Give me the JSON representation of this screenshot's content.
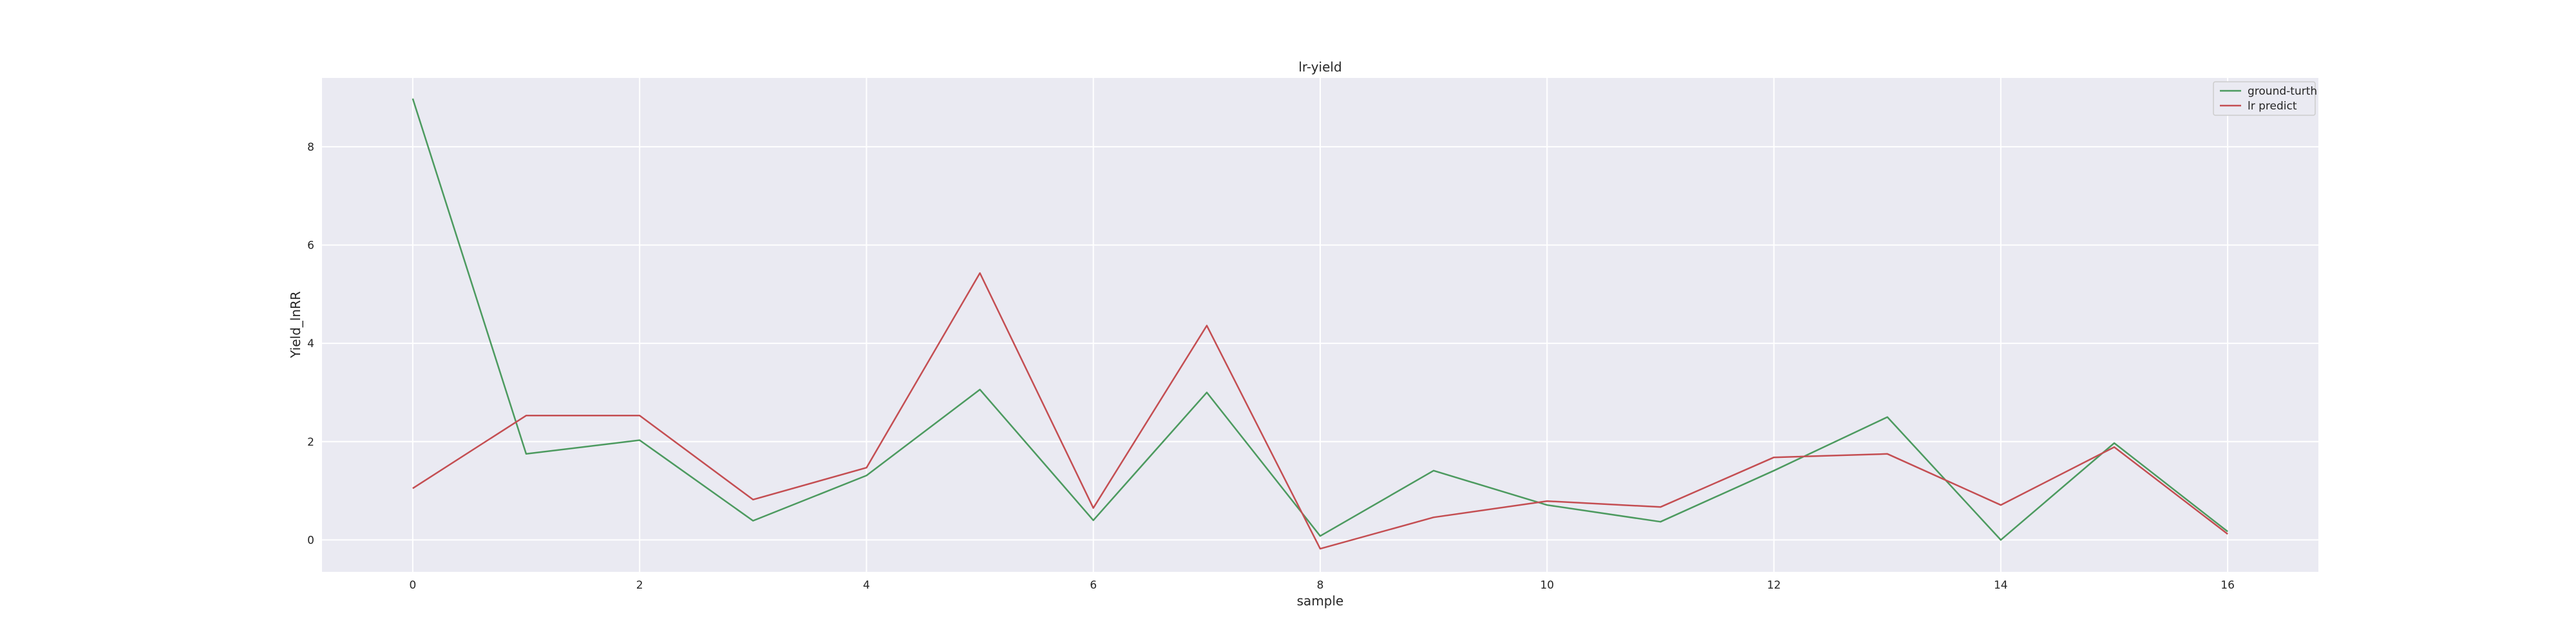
{
  "chart_data": {
    "type": "line",
    "title": "lr-yield",
    "xlabel": "sample",
    "ylabel": "Yield_lnRR",
    "x": [
      0,
      1,
      2,
      3,
      4,
      5,
      6,
      7,
      8,
      9,
      10,
      11,
      12,
      13,
      14,
      15,
      16
    ],
    "xlim": [
      -0.8,
      16.8
    ],
    "ylim": [
      -0.65,
      9.4
    ],
    "xticks": [
      0,
      2,
      4,
      6,
      8,
      10,
      12,
      14,
      16
    ],
    "yticks": [
      0,
      2,
      4,
      6,
      8
    ],
    "grid": true,
    "legend_position": "top-right",
    "series": [
      {
        "name": "ground-turth",
        "color": "#4c9a5f",
        "values": [
          8.98,
          1.75,
          2.03,
          0.39,
          1.31,
          3.06,
          0.4,
          3.0,
          0.08,
          1.41,
          0.71,
          0.37,
          1.41,
          2.5,
          0.0,
          1.97,
          0.17
        ]
      },
      {
        "name": "lr predict",
        "color": "#c44e52",
        "values": [
          1.05,
          2.53,
          2.53,
          0.82,
          1.47,
          5.43,
          0.65,
          4.36,
          -0.18,
          0.46,
          0.79,
          0.67,
          1.68,
          1.75,
          0.71,
          1.89,
          0.12
        ]
      }
    ]
  }
}
